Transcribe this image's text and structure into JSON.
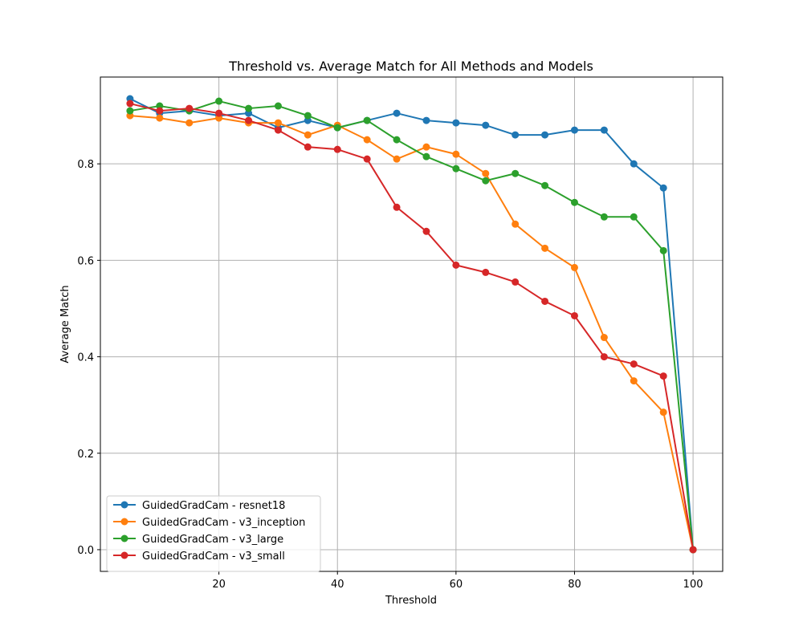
{
  "chart_data": {
    "type": "line",
    "title": "Threshold vs. Average Match for All Methods and Models",
    "xlabel": "Threshold",
    "ylabel": "Average Match",
    "xlim": [
      0,
      105
    ],
    "ylim": [
      -0.045,
      0.98
    ],
    "xticks": [
      20,
      40,
      60,
      80,
      100
    ],
    "xtick_labels": [
      "20",
      "40",
      "60",
      "80",
      "100"
    ],
    "yticks": [
      0.0,
      0.2,
      0.4,
      0.6,
      0.8
    ],
    "ytick_labels": [
      "0.0",
      "0.2",
      "0.4",
      "0.6",
      "0.8"
    ],
    "grid": true,
    "legend_position": "lower-left",
    "x": [
      5,
      10,
      15,
      20,
      25,
      30,
      35,
      40,
      45,
      50,
      55,
      60,
      65,
      70,
      75,
      80,
      85,
      90,
      95,
      100
    ],
    "series": [
      {
        "name": "GuidedGradCam - resnet18",
        "color": "#1f77b4",
        "values": [
          0.935,
          0.905,
          0.91,
          0.9,
          0.905,
          0.875,
          0.89,
          0.875,
          0.89,
          0.905,
          0.89,
          0.885,
          0.88,
          0.86,
          0.86,
          0.87,
          0.87,
          0.8,
          0.75,
          0.0
        ]
      },
      {
        "name": "GuidedGradCam - v3_inception",
        "color": "#ff7f0e",
        "values": [
          0.9,
          0.895,
          0.885,
          0.895,
          0.885,
          0.885,
          0.86,
          0.88,
          0.85,
          0.81,
          0.835,
          0.82,
          0.78,
          0.675,
          0.625,
          0.585,
          0.44,
          0.35,
          0.285,
          0.0
        ]
      },
      {
        "name": "GuidedGradCam - v3_large",
        "color": "#2ca02c",
        "values": [
          0.91,
          0.92,
          0.91,
          0.93,
          0.915,
          0.92,
          0.9,
          0.875,
          0.89,
          0.85,
          0.815,
          0.79,
          0.765,
          0.78,
          0.755,
          0.72,
          0.69,
          0.69,
          0.62,
          0.0
        ]
      },
      {
        "name": "GuidedGradCam - v3_small",
        "color": "#d62728",
        "values": [
          0.925,
          0.91,
          0.915,
          0.905,
          0.89,
          0.87,
          0.835,
          0.83,
          0.81,
          0.71,
          0.66,
          0.59,
          0.575,
          0.555,
          0.515,
          0.485,
          0.4,
          0.385,
          0.36,
          0.0
        ]
      }
    ]
  }
}
